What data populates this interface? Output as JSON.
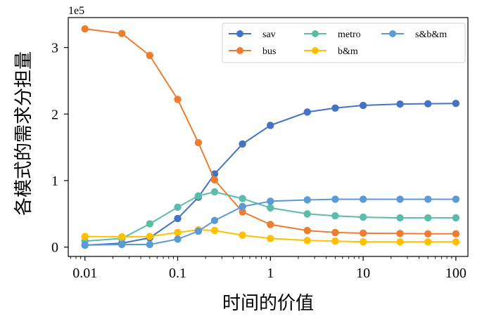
{
  "chart_data": {
    "type": "line",
    "xscale": "log",
    "x": [
      0.01,
      0.025,
      0.05,
      0.1,
      0.167,
      0.25,
      0.5,
      1,
      2.5,
      5,
      10,
      25,
      50,
      100
    ],
    "xticks": [
      "0.01",
      "0.1",
      "1",
      "10",
      "100"
    ],
    "yticks": [
      "0",
      "1",
      "2",
      "3"
    ],
    "y_multiplier_label": "1e5",
    "ylim": [
      -0.14,
      3.45
    ],
    "xlabel": "时间的价值",
    "ylabel": "各模式的需求分担量",
    "legend_position": "top-right",
    "series": [
      {
        "name": "sav",
        "color": "#4472c4",
        "values": [
          0.03,
          0.06,
          0.14,
          0.43,
          0.75,
          1.1,
          1.55,
          1.83,
          2.03,
          2.09,
          2.13,
          2.15,
          2.155,
          2.16
        ]
      },
      {
        "name": "bus",
        "color": "#ed7d31",
        "values": [
          3.28,
          3.21,
          2.88,
          2.22,
          1.57,
          1.01,
          0.53,
          0.34,
          0.25,
          0.22,
          0.21,
          0.205,
          0.2,
          0.2
        ]
      },
      {
        "name": "metro",
        "color": "#5bbcaa",
        "values": [
          0.09,
          0.13,
          0.35,
          0.6,
          0.77,
          0.83,
          0.73,
          0.59,
          0.5,
          0.47,
          0.45,
          0.44,
          0.44,
          0.44
        ]
      },
      {
        "name": "b&m",
        "color": "#ffc000",
        "values": [
          0.16,
          0.155,
          0.16,
          0.22,
          0.26,
          0.25,
          0.18,
          0.13,
          0.1,
          0.09,
          0.08,
          0.08,
          0.08,
          0.08
        ]
      },
      {
        "name": "s&b&m",
        "color": "#5b9bd5",
        "values": [
          0.03,
          0.04,
          0.04,
          0.12,
          0.24,
          0.4,
          0.61,
          0.69,
          0.71,
          0.72,
          0.72,
          0.72,
          0.72,
          0.72
        ]
      }
    ]
  }
}
